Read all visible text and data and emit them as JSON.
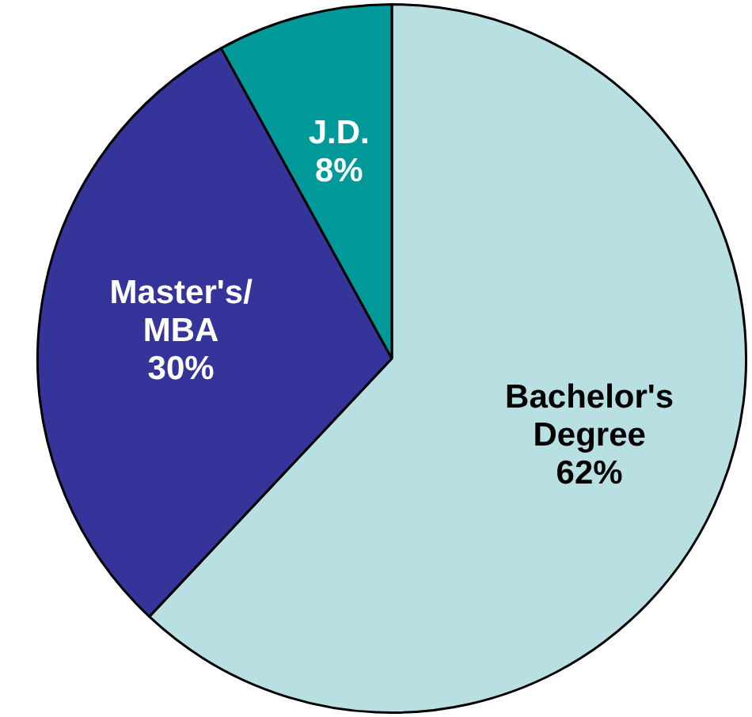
{
  "chart_data": {
    "type": "pie",
    "categories": [
      "Bachelor's Degree",
      "Master's/MBA",
      "J.D."
    ],
    "values": [
      62,
      30,
      8
    ],
    "colors": [
      "#b8dfe2",
      "#35349a",
      "#009999"
    ],
    "value_labels": [
      "62%",
      "30%",
      "8%"
    ],
    "legend": false
  }
}
